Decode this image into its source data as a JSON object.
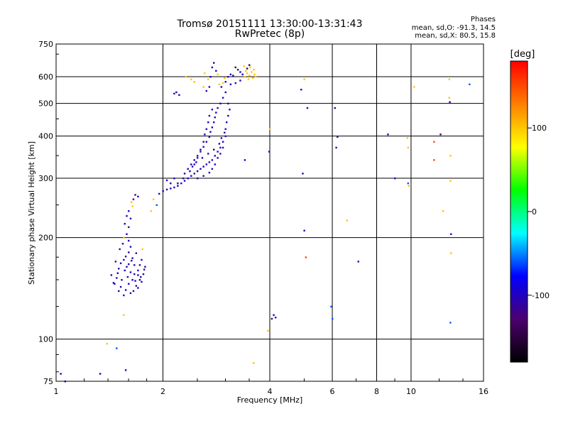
{
  "header": {
    "title": "Tromsø 20151111 13:30:00-13:31:43",
    "subtitle": "RwPretec (8p)"
  },
  "phase_box": {
    "title": "Phases",
    "line1": "mean, sd,O:  -91.3, 14.5",
    "line2": "mean, sd,X:   80.5, 15.8"
  },
  "colorbar": {
    "unit": "[deg]",
    "ticks": [
      {
        "value": 100,
        "label": "100"
      },
      {
        "value": 0,
        "label": "0"
      },
      {
        "value": -100,
        "label": "-100"
      }
    ],
    "range": [
      -180,
      180
    ],
    "colors": [
      "#000000",
      "#4b006e",
      "#0000ff",
      "#00ffff",
      "#00ff00",
      "#ffff00",
      "#ff7f00",
      "#ff0000"
    ]
  },
  "chart_data": {
    "type": "scatter",
    "title": "Tromsø 20151111 13:30:00-13:31:43",
    "subtitle": "RwPretec (8p)",
    "xlabel": "Frequency [MHz]",
    "ylabel": "Stationary phase Virtual Height [km]",
    "xscale": "log",
    "yscale": "log",
    "xlim": [
      1,
      16
    ],
    "ylim": [
      75,
      750
    ],
    "xticks": [
      {
        "value": 1,
        "label": "1"
      },
      {
        "value": 2,
        "label": "2"
      },
      {
        "value": 4,
        "label": "4"
      },
      {
        "value": 6,
        "label": "6"
      },
      {
        "value": 8,
        "label": "8"
      },
      {
        "value": 10,
        "label": "10"
      },
      {
        "value": 16,
        "label": "16"
      }
    ],
    "yticks": [
      {
        "value": 75,
        "label": "75"
      },
      {
        "value": 100,
        "label": "100"
      },
      {
        "value": 200,
        "label": "200"
      },
      {
        "value": 300,
        "label": "300"
      },
      {
        "value": 400,
        "label": "400"
      },
      {
        "value": 500,
        "label": "500"
      },
      {
        "value": 600,
        "label": "600"
      },
      {
        "value": 750,
        "label": "750"
      }
    ],
    "grid": true,
    "color_variable": "phase [deg]",
    "points": [
      [
        1.03,
        79,
        -90
      ],
      [
        1.06,
        75,
        -85
      ],
      [
        1.33,
        79,
        -95
      ],
      [
        1.39,
        97,
        100
      ],
      [
        1.48,
        94,
        -60
      ],
      [
        1.57,
        81,
        -95
      ],
      [
        1.55,
        118,
        100
      ],
      [
        1.55,
        200,
        100
      ],
      [
        1.75,
        185,
        100
      ],
      [
        1.5,
        162,
        -100
      ],
      [
        1.52,
        168,
        -110
      ],
      [
        1.55,
        172,
        -105
      ],
      [
        1.58,
        164,
        -100
      ],
      [
        1.62,
        158,
        -95
      ],
      [
        1.66,
        166,
        -110
      ],
      [
        1.7,
        155,
        -100
      ],
      [
        1.72,
        150,
        -95
      ],
      [
        1.48,
        152,
        -105
      ],
      [
        1.46,
        146,
        -100
      ],
      [
        1.52,
        143,
        -110
      ],
      [
        1.57,
        140,
        -105
      ],
      [
        1.6,
        146,
        -100
      ],
      [
        1.64,
        150,
        -95
      ],
      [
        1.68,
        144,
        -105
      ],
      [
        1.62,
        137,
        -110
      ],
      [
        1.55,
        135,
        -100
      ],
      [
        1.5,
        139,
        -105
      ],
      [
        1.45,
        147,
        -100
      ],
      [
        1.49,
        157,
        -95
      ],
      [
        1.53,
        150,
        -110
      ],
      [
        1.59,
        153,
        -105
      ],
      [
        1.66,
        156,
        -100
      ],
      [
        1.7,
        160,
        -95
      ],
      [
        1.72,
        166,
        -110
      ],
      [
        1.63,
        171,
        -100
      ],
      [
        1.57,
        176,
        -105
      ],
      [
        1.6,
        181,
        -110
      ],
      [
        1.62,
        188,
        -100
      ],
      [
        1.6,
        196,
        -105
      ],
      [
        1.58,
        205,
        -100
      ],
      [
        1.6,
        215,
        -110
      ],
      [
        1.62,
        228,
        -105
      ],
      [
        1.6,
        240,
        -100
      ],
      [
        1.63,
        255,
        100
      ],
      [
        1.67,
        268,
        -110
      ],
      [
        1.65,
        260,
        -100
      ],
      [
        1.7,
        265,
        -105
      ],
      [
        1.64,
        248,
        100
      ],
      [
        1.58,
        232,
        -95
      ],
      [
        1.56,
        220,
        -100
      ],
      [
        1.68,
        180,
        -105
      ],
      [
        1.74,
        172,
        -100
      ],
      [
        1.78,
        164,
        -95
      ],
      [
        1.76,
        156,
        -110
      ],
      [
        1.74,
        148,
        -100
      ],
      [
        1.7,
        142,
        -105
      ],
      [
        1.65,
        139,
        -100
      ],
      [
        1.43,
        155,
        -95
      ],
      [
        1.47,
        170,
        -100
      ],
      [
        1.51,
        185,
        -110
      ],
      [
        1.54,
        192,
        -105
      ],
      [
        1.56,
        160,
        -100
      ],
      [
        1.6,
        167,
        -105
      ],
      [
        1.64,
        174,
        -95
      ],
      [
        1.67,
        149,
        -100
      ],
      [
        1.73,
        153,
        -110
      ],
      [
        1.77,
        161,
        -100
      ],
      [
        1.85,
        240,
        100
      ],
      [
        1.88,
        260,
        100
      ],
      [
        1.92,
        250,
        -60
      ],
      [
        1.95,
        270,
        -100
      ],
      [
        2.0,
        275,
        -95
      ],
      [
        2.05,
        278,
        -100
      ],
      [
        2.1,
        280,
        -105
      ],
      [
        2.15,
        282,
        -100
      ],
      [
        2.2,
        285,
        -110
      ],
      [
        2.1,
        290,
        -100
      ],
      [
        2.05,
        296,
        -95
      ],
      [
        2.15,
        300,
        -100
      ],
      [
        2.25,
        290,
        -105
      ],
      [
        2.3,
        295,
        -100
      ],
      [
        2.35,
        300,
        -95
      ],
      [
        2.4,
        305,
        -100
      ],
      [
        2.45,
        310,
        -110
      ],
      [
        2.5,
        315,
        -100
      ],
      [
        2.55,
        320,
        -105
      ],
      [
        2.6,
        325,
        -100
      ],
      [
        2.65,
        330,
        -95
      ],
      [
        2.7,
        335,
        -100
      ],
      [
        2.75,
        340,
        -105
      ],
      [
        2.8,
        350,
        -100
      ],
      [
        2.85,
        360,
        -110
      ],
      [
        2.9,
        370,
        -100
      ],
      [
        2.95,
        385,
        -95
      ],
      [
        3.0,
        400,
        -100
      ],
      [
        3.0,
        420,
        -105
      ],
      [
        3.02,
        440,
        -100
      ],
      [
        3.05,
        460,
        -95
      ],
      [
        3.08,
        480,
        -100
      ],
      [
        3.05,
        500,
        -110
      ],
      [
        2.3,
        310,
        -100
      ],
      [
        2.35,
        320,
        -105
      ],
      [
        2.4,
        330,
        -100
      ],
      [
        2.45,
        340,
        -95
      ],
      [
        2.5,
        350,
        -100
      ],
      [
        2.55,
        360,
        -110
      ],
      [
        2.6,
        372,
        -100
      ],
      [
        2.65,
        385,
        -105
      ],
      [
        2.7,
        398,
        -100
      ],
      [
        2.72,
        412,
        -95
      ],
      [
        2.75,
        425,
        -100
      ],
      [
        2.78,
        440,
        -105
      ],
      [
        2.8,
        455,
        -100
      ],
      [
        2.82,
        470,
        -110
      ],
      [
        2.85,
        485,
        -100
      ],
      [
        2.9,
        500,
        -95
      ],
      [
        2.95,
        520,
        -100
      ],
      [
        3.0,
        540,
        -105
      ],
      [
        2.5,
        300,
        -100
      ],
      [
        2.6,
        305,
        -110
      ],
      [
        2.7,
        312,
        -100
      ],
      [
        2.75,
        320,
        -105
      ],
      [
        2.8,
        330,
        -100
      ],
      [
        2.85,
        345,
        -95
      ],
      [
        2.9,
        355,
        -100
      ],
      [
        2.95,
        370,
        -105
      ],
      [
        2.45,
        330,
        -100
      ],
      [
        2.5,
        345,
        -110
      ],
      [
        2.55,
        365,
        -100
      ],
      [
        2.6,
        385,
        -105
      ],
      [
        2.62,
        405,
        -100
      ],
      [
        2.65,
        420,
        -95
      ],
      [
        2.68,
        440,
        -100
      ],
      [
        2.7,
        460,
        -105
      ],
      [
        2.75,
        480,
        -100
      ],
      [
        2.2,
        290,
        -105
      ],
      [
        2.28,
        300,
        -100
      ],
      [
        2.38,
        315,
        -95
      ],
      [
        2.42,
        325,
        -100
      ],
      [
        2.48,
        335,
        -105
      ],
      [
        2.58,
        345,
        -100
      ],
      [
        2.68,
        355,
        -110
      ],
      [
        2.78,
        365,
        -100
      ],
      [
        2.88,
        380,
        -95
      ],
      [
        2.92,
        395,
        -100
      ],
      [
        2.98,
        410,
        -105
      ],
      [
        2.15,
        535,
        -100
      ],
      [
        2.18,
        540,
        -105
      ],
      [
        2.22,
        530,
        -100
      ],
      [
        2.32,
        600,
        100
      ],
      [
        2.4,
        590,
        100
      ],
      [
        2.45,
        580,
        100
      ],
      [
        2.6,
        560,
        100
      ],
      [
        2.65,
        545,
        -100
      ],
      [
        2.7,
        560,
        -105
      ],
      [
        2.72,
        600,
        -100
      ],
      [
        2.75,
        640,
        -110
      ],
      [
        2.78,
        660,
        -100
      ],
      [
        2.82,
        625,
        -105
      ],
      [
        2.85,
        610,
        100
      ],
      [
        2.88,
        570,
        100
      ],
      [
        2.92,
        560,
        -100
      ],
      [
        2.95,
        575,
        100
      ],
      [
        2.98,
        595,
        100
      ],
      [
        2.62,
        615,
        100
      ],
      [
        2.68,
        590,
        100
      ],
      [
        3.0,
        580,
        -100
      ],
      [
        3.05,
        600,
        -105
      ],
      [
        3.1,
        610,
        -100
      ],
      [
        3.15,
        605,
        -95
      ],
      [
        3.2,
        640,
        -150
      ],
      [
        3.25,
        630,
        -140
      ],
      [
        3.3,
        620,
        -100
      ],
      [
        3.5,
        650,
        -150
      ],
      [
        3.45,
        635,
        -140
      ],
      [
        3.35,
        610,
        -100
      ],
      [
        3.4,
        600,
        100
      ],
      [
        3.45,
        615,
        100
      ],
      [
        3.5,
        605,
        100
      ],
      [
        3.55,
        620,
        100
      ],
      [
        3.6,
        630,
        100
      ],
      [
        3.62,
        610,
        100
      ],
      [
        3.65,
        600,
        100
      ],
      [
        3.58,
        595,
        100
      ],
      [
        3.48,
        590,
        100
      ],
      [
        3.42,
        625,
        100
      ],
      [
        3.52,
        640,
        100
      ],
      [
        3.38,
        645,
        100
      ],
      [
        3.3,
        585,
        -100
      ],
      [
        3.2,
        575,
        -105
      ],
      [
        3.1,
        570,
        -100
      ],
      [
        3.4,
        340,
        -100
      ],
      [
        3.6,
        85,
        100
      ],
      [
        3.95,
        106,
        100
      ],
      [
        3.98,
        360,
        -100
      ],
      [
        4.0,
        420,
        100
      ],
      [
        4.05,
        115,
        -100
      ],
      [
        4.1,
        118,
        -105
      ],
      [
        4.15,
        116,
        -100
      ],
      [
        4.9,
        550,
        -100
      ],
      [
        4.95,
        310,
        -100
      ],
      [
        5.0,
        210,
        -100
      ],
      [
        5.05,
        175,
        150
      ],
      [
        5.1,
        485,
        -100
      ],
      [
        5.0,
        590,
        100
      ],
      [
        5.95,
        125,
        -60
      ],
      [
        6.0,
        115,
        -60
      ],
      [
        6.1,
        485,
        -100
      ],
      [
        6.15,
        370,
        -100
      ],
      [
        6.2,
        398,
        -120
      ],
      [
        6.6,
        225,
        100
      ],
      [
        7.1,
        170,
        -100
      ],
      [
        8.6,
        405,
        -100
      ],
      [
        9.0,
        300,
        -100
      ],
      [
        9.8,
        290,
        -60
      ],
      [
        9.85,
        285,
        100
      ],
      [
        9.8,
        370,
        100
      ],
      [
        9.75,
        395,
        100
      ],
      [
        10.2,
        560,
        100
      ],
      [
        11.6,
        385,
        150
      ],
      [
        11.6,
        340,
        150
      ],
      [
        12.1,
        405,
        -140
      ],
      [
        12.3,
        240,
        100
      ],
      [
        12.8,
        590,
        100
      ],
      [
        12.8,
        520,
        100
      ],
      [
        12.85,
        505,
        -100
      ],
      [
        12.9,
        350,
        100
      ],
      [
        12.9,
        295,
        100
      ],
      [
        12.95,
        205,
        -100
      ],
      [
        12.95,
        180,
        100
      ],
      [
        12.9,
        112,
        -60
      ],
      [
        14.6,
        570,
        -60
      ]
    ]
  }
}
